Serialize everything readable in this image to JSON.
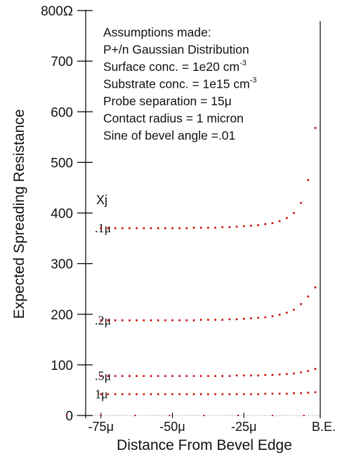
{
  "chart_data": {
    "type": "scatter",
    "title": "",
    "xlabel": "Distance From Bevel Edge",
    "ylabel": "Expected Spreading Resistance",
    "ylim": [
      0,
      800
    ],
    "xlim": [
      -90,
      0
    ],
    "y_ticks": [
      {
        "value": 0,
        "label": "0"
      },
      {
        "value": 100,
        "label": "100"
      },
      {
        "value": 200,
        "label": "200"
      },
      {
        "value": 300,
        "label": "300"
      },
      {
        "value": 400,
        "label": "400"
      },
      {
        "value": 500,
        "label": "500"
      },
      {
        "value": 600,
        "label": "600"
      },
      {
        "value": 700,
        "label": "700"
      },
      {
        "value": 800,
        "label": "800Ω"
      }
    ],
    "x_ticks": [
      {
        "value": -75,
        "label": "-75μ"
      },
      {
        "value": -50,
        "label": "-50μ"
      },
      {
        "value": -25,
        "label": "-25μ"
      },
      {
        "value": 0,
        "label": "B.E."
      }
    ],
    "xj_header": "Xj",
    "assumptions": [
      {
        "text": "Assumptions made:"
      },
      {
        "text": "P+/n Gaussian Distribution"
      },
      {
        "text": "Surface conc. = 1e20 cm",
        "sup": "-3"
      },
      {
        "text": "Substrate conc. = 1e15 cm",
        "sup": "-3"
      },
      {
        "text": "Probe separation  = 15μ"
      },
      {
        "text": "Contact radius = 1 micron"
      },
      {
        "text": "Sine of bevel angle =.01"
      }
    ],
    "series": [
      {
        "name": ".1μ",
        "color": "#cc0000",
        "x": [
          -75,
          -72.5,
          -70,
          -67.5,
          -65,
          -62.5,
          -60,
          -57.5,
          -55,
          -52.5,
          -50,
          -47.5,
          -45,
          -42.5,
          -40,
          -37.5,
          -35,
          -32.5,
          -30,
          -27.5,
          -25,
          -22.5,
          -20,
          -17.5,
          -15,
          -12.5,
          -10,
          -7.5,
          -5,
          -2.5,
          0
        ],
        "y": [
          370,
          370,
          370,
          370,
          370,
          370,
          370,
          370,
          370,
          370,
          370,
          370,
          370,
          371,
          371,
          371,
          371,
          372,
          372,
          373,
          374,
          375,
          376,
          378,
          380,
          384,
          390,
          400,
          420,
          465,
          568
        ]
      },
      {
        "name": ".2μ",
        "color": "#cc0000",
        "x": [
          -75,
          -72.5,
          -70,
          -67.5,
          -65,
          -62.5,
          -60,
          -57.5,
          -55,
          -52.5,
          -50,
          -47.5,
          -45,
          -42.5,
          -40,
          -37.5,
          -35,
          -32.5,
          -30,
          -27.5,
          -25,
          -22.5,
          -20,
          -17.5,
          -15,
          -12.5,
          -10,
          -7.5,
          -5,
          -2.5,
          0
        ],
        "y": [
          188,
          188,
          188,
          188,
          188,
          188,
          188,
          188,
          188,
          188,
          188,
          188,
          188,
          188,
          189,
          189,
          189,
          189,
          190,
          190,
          191,
          192,
          193,
          194,
          196,
          199,
          203,
          209,
          220,
          235,
          253
        ]
      },
      {
        "name": ".5μ",
        "color": "#cc0000",
        "x": [
          -75,
          -72.5,
          -70,
          -67.5,
          -65,
          -62.5,
          -60,
          -57.5,
          -55,
          -52.5,
          -50,
          -47.5,
          -45,
          -42.5,
          -40,
          -37.5,
          -35,
          -32.5,
          -30,
          -27.5,
          -25,
          -22.5,
          -20,
          -17.5,
          -15,
          -12.5,
          -10,
          -7.5,
          -5,
          -2.5,
          0
        ],
        "y": [
          78,
          78,
          78,
          78,
          78,
          78,
          78,
          78,
          78,
          78,
          78,
          78,
          78,
          78,
          78,
          78,
          78,
          78,
          78,
          79,
          79,
          79,
          79,
          80,
          80,
          81,
          82,
          83,
          85,
          88,
          92
        ]
      },
      {
        "name": "1μ",
        "color": "#cc0000",
        "x": [
          -75,
          -72.5,
          -70,
          -67.5,
          -65,
          -62.5,
          -60,
          -57.5,
          -55,
          -52.5,
          -50,
          -47.5,
          -45,
          -42.5,
          -40,
          -37.5,
          -35,
          -32.5,
          -30,
          -27.5,
          -25,
          -22.5,
          -20,
          -17.5,
          -15,
          -12.5,
          -10,
          -7.5,
          -5,
          -2.5,
          0
        ],
        "y": [
          42,
          42,
          42,
          42,
          42,
          42,
          42,
          42,
          42,
          42,
          42,
          42,
          42,
          42,
          42,
          42,
          42,
          42,
          42,
          42,
          42,
          42,
          42,
          43,
          43,
          43,
          43,
          44,
          44,
          45,
          46
        ]
      }
    ],
    "baseline_markers": {
      "color": "#cc0000",
      "x": [
        -87,
        -75,
        -63,
        -51,
        -39,
        -27,
        -15,
        -4
      ],
      "y": 0
    }
  }
}
